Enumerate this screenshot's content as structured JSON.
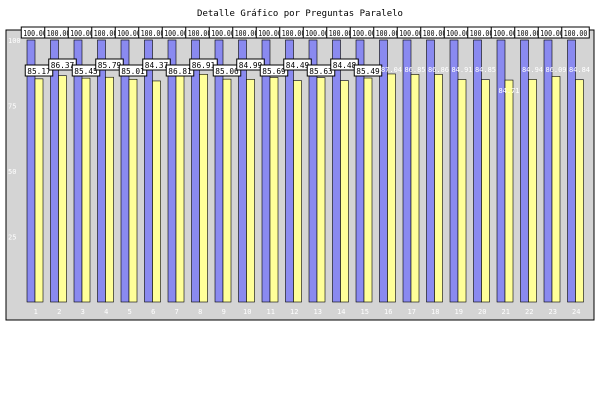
{
  "chart_data": {
    "type": "bar",
    "title": "Detalle Gráfico por Preguntas Paralelo",
    "categories": [
      "1",
      "2",
      "3",
      "4",
      "5",
      "6",
      "7",
      "8",
      "9",
      "10",
      "11",
      "12",
      "13",
      "14",
      "15",
      "16",
      "17",
      "18",
      "19",
      "20",
      "21",
      "22",
      "23",
      "24"
    ],
    "ylim": [
      0,
      100
    ],
    "yticks": [
      25,
      50,
      75,
      100
    ],
    "grid": false,
    "legend": "none",
    "series": [
      {
        "color": "#8a8af0",
        "values": [
          100,
          100,
          100,
          100,
          100,
          100,
          100,
          100,
          100,
          100,
          100,
          100,
          100,
          100,
          100,
          100,
          100,
          100,
          100,
          100,
          100,
          100,
          100,
          100
        ],
        "labels": [
          "100.00",
          "100.00",
          "100.00",
          "100.00",
          "100.00",
          "100.00",
          "100.00",
          "100.00",
          "100.00",
          "100.00",
          "100.00",
          "100.00",
          "100.00",
          "100.00",
          "100.00",
          "100.00",
          "100.00",
          "100.00",
          "100.00",
          "100.00",
          "100.00",
          "100.00",
          "100.00",
          "100.00"
        ]
      },
      {
        "color": "#ffff99",
        "values": [
          85.17,
          86.37,
          85.45,
          85.79,
          85.01,
          84.37,
          86.81,
          86.91,
          85.06,
          84.99,
          85.69,
          84.49,
          85.63,
          84.48,
          85.49,
          87.04,
          86.85,
          86.86,
          84.91,
          84.85,
          84.71,
          84.94,
          86.09,
          84.84
        ],
        "labels": [
          "85.17",
          "86.37",
          "85.45",
          "85.79",
          "85.01",
          "84.37",
          "86.81",
          "86.91",
          "85.06",
          "84.99",
          "85.69",
          "84.49",
          "85.63",
          "84.48",
          "85.49",
          "87.04",
          "86.85",
          "86.86",
          "84.91",
          "84.85",
          "84.71",
          "84.94",
          "86.09",
          "84.84"
        ]
      }
    ],
    "colors": {
      "plot_bg": "#d4d4d4",
      "label_box": "#ffffff",
      "label_text": "#000000",
      "ghost_label_text": "#ffffff",
      "tick_text": "#ffffff"
    }
  }
}
